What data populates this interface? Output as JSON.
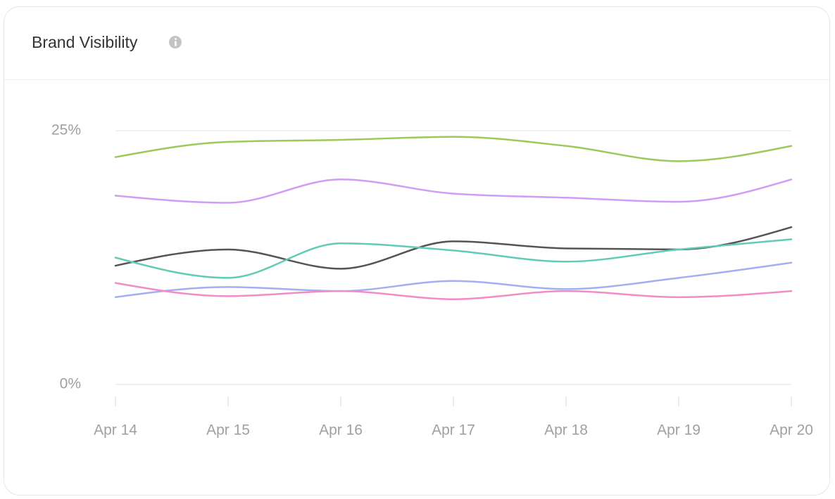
{
  "chart_data": {
    "type": "line",
    "title": "Brand Visibility",
    "categories": [
      "Apr 14",
      "Apr 15",
      "Apr 16",
      "Apr 17",
      "Apr 18",
      "Apr 19",
      "Apr 20"
    ],
    "series": [
      {
        "color": "#9bc95a",
        "values": [
          22.4,
          23.9,
          24.1,
          24.4,
          23.5,
          22.0,
          23.5
        ]
      },
      {
        "color": "#cf9cf7",
        "values": [
          18.6,
          17.9,
          20.2,
          18.8,
          18.4,
          18.0,
          20.2
        ]
      },
      {
        "color": "#555555",
        "values": [
          11.7,
          13.3,
          11.4,
          14.1,
          13.4,
          13.3,
          15.5
        ]
      },
      {
        "color": "#62cbb5",
        "values": [
          12.5,
          10.5,
          13.9,
          13.2,
          12.1,
          13.3,
          14.3
        ]
      },
      {
        "color": "#a3aef5",
        "values": [
          8.6,
          9.6,
          9.2,
          10.2,
          9.4,
          10.5,
          12.0
        ]
      },
      {
        "color": "#f28cc6",
        "values": [
          10.0,
          8.7,
          9.2,
          8.4,
          9.2,
          8.6,
          9.2
        ]
      }
    ],
    "ylim": [
      0,
      25
    ],
    "yticks": [
      {
        "value": 0,
        "label": "0%"
      },
      {
        "value": 25,
        "label": "25%"
      }
    ],
    "grid": true
  }
}
